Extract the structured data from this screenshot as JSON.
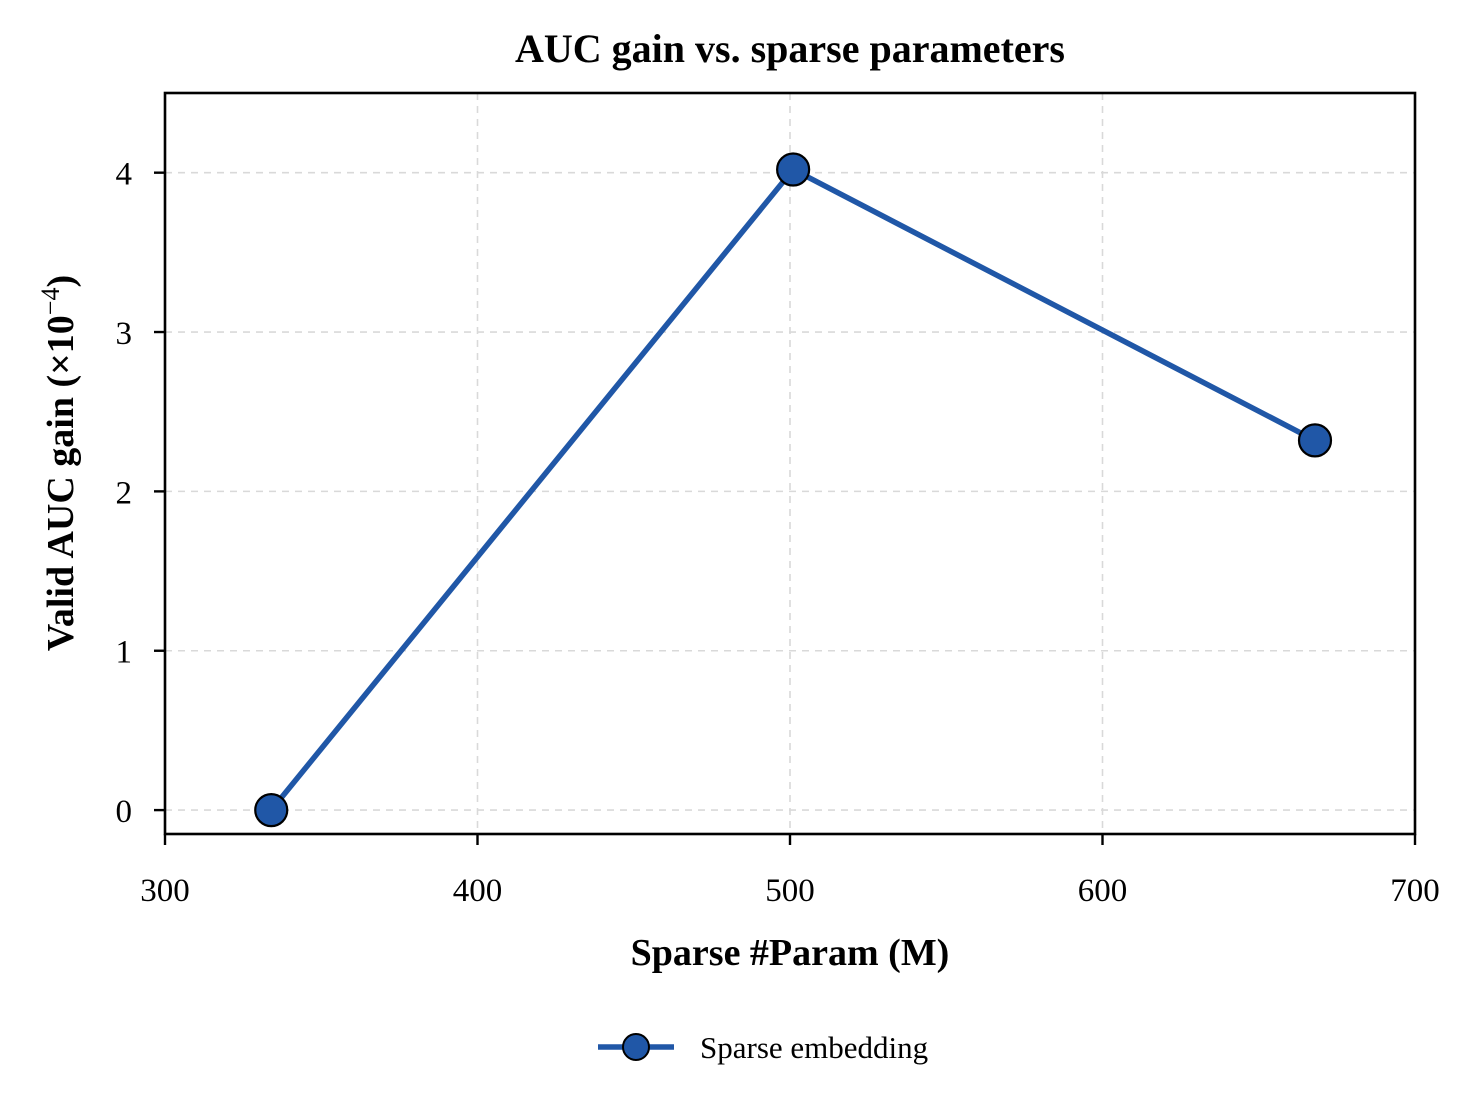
{
  "chart_data": {
    "type": "line",
    "title": "AUC gain vs. sparse parameters",
    "xlabel": "Sparse #Param (M)",
    "ylabel": "Valid AUC gain (×10",
    "ylabel_exponent": "−4",
    "ylabel_close": ")",
    "xlim": [
      300,
      700
    ],
    "ylim": [
      -0.15,
      4.5
    ],
    "xticks": [
      300,
      400,
      500,
      600,
      700
    ],
    "yticks": [
      0,
      1,
      2,
      3,
      4
    ],
    "grid": true,
    "legend_position": "bottom-center (below plot)",
    "series": [
      {
        "name": "Sparse embedding",
        "color": "#2057a7",
        "marker": "circle",
        "x": [
          334,
          501,
          668
        ],
        "y": [
          0.0,
          4.02,
          2.32
        ]
      }
    ]
  }
}
